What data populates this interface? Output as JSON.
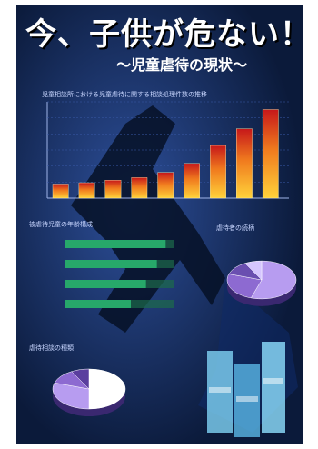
{
  "poster": {
    "headline": "今、子供が危ない！",
    "subtitle": "〜児童虐待の現状〜",
    "colors": {
      "background": "#0b1a3a",
      "bar_bottom": "#ffd23a",
      "bar_top": "#c6181a",
      "green": "#27a86a",
      "purple": "#8d6ad1",
      "cyan": "#7fd3f5"
    }
  },
  "chart_data": [
    {
      "type": "bar",
      "title": "児童相談所における児童虐待に関する相談処理件数の推移",
      "categories": [
        "",
        "",
        "",
        "",
        "",
        "",
        "",
        "",
        ""
      ],
      "values": [
        1100,
        1200,
        1400,
        1600,
        2000,
        2700,
        4100,
        5400,
        6900
      ],
      "ylim": [
        0,
        7500
      ],
      "grid": true
    },
    {
      "type": "bar",
      "title": "被虐待児童の年齢構成",
      "categories": [
        "",
        "",
        "",
        ""
      ],
      "values": [
        0.92,
        0.84,
        0.74,
        0.6
      ]
    },
    {
      "type": "pie",
      "title": "虐待者の続柄",
      "values": [
        55,
        25,
        12,
        8
      ]
    },
    {
      "type": "pie",
      "title": "虐待相談の種類",
      "values": [
        50,
        30,
        12,
        8
      ]
    }
  ]
}
